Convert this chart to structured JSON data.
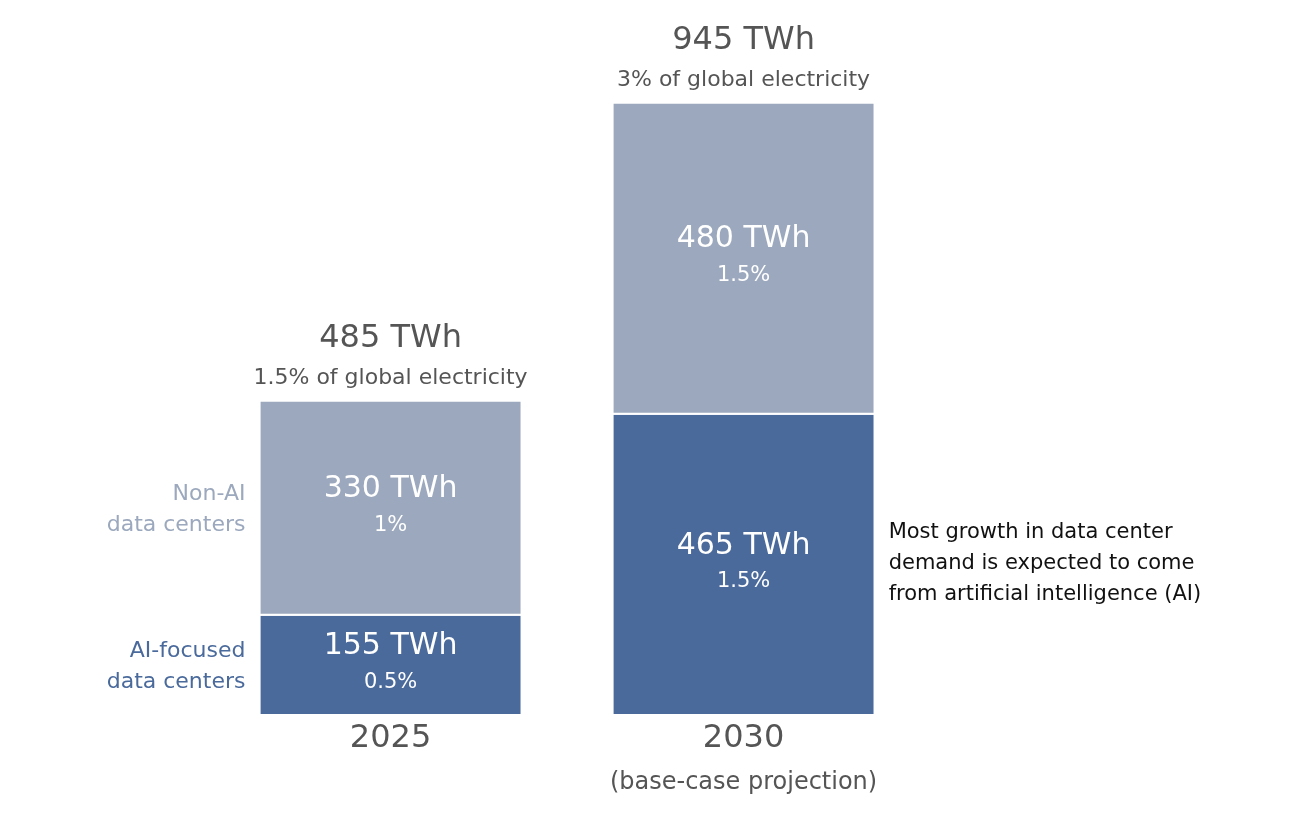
{
  "chart_data": {
    "type": "bar",
    "stacked": true,
    "categories": [
      "2025",
      "2030\n(base-case projection)"
    ],
    "series": [
      {
        "name": "AI-focused data centers",
        "color": "#4a6a9c",
        "values": [
          155,
          465
        ],
        "value_labels": [
          "155 TWh\n0.5%",
          "465 TWh\n1.5%"
        ]
      },
      {
        "name": "Non-AI data centers",
        "color": "#9ba8bd",
        "values": [
          330,
          480
        ],
        "value_labels": [
          "330 TWh\n1%",
          "480 TWh\n1.5%"
        ]
      }
    ],
    "totals": [
      "485 TWh\n1.5% of global electricity",
      "945 TWh\n3% of global electricity"
    ],
    "annotations": [
      "Most growth in data center\ndemand is expected to come\nfrom artificial intelligence (AI)"
    ],
    "legend": false,
    "grid": false,
    "tick_labels": false
  }
}
